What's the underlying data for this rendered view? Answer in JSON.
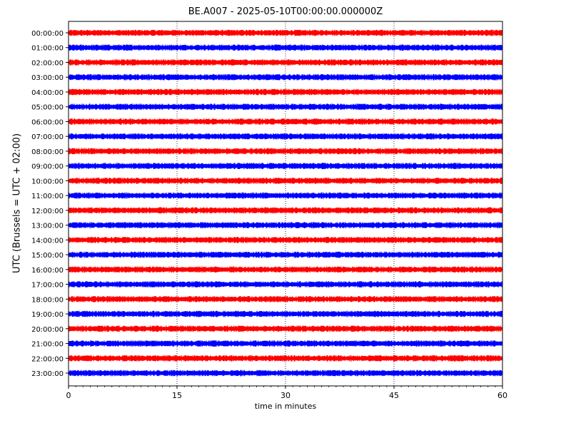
{
  "chart_data": {
    "type": "line",
    "title": "BE.A007 - 2025-05-10T00:00:00.000000Z",
    "xlabel": "time in minutes",
    "ylabel": "UTC (Brussels = UTC + 02:00)",
    "xlim": [
      0,
      60
    ],
    "x_ticks": [
      "0",
      "15",
      "30",
      "45",
      "60"
    ],
    "x_tick_values": [
      0,
      15,
      30,
      45,
      60
    ],
    "grid": "vertical dotted",
    "series_colors": [
      "#ff0000",
      "#0000ff"
    ],
    "series": [
      {
        "label": "00:00:00",
        "color": "#ff0000"
      },
      {
        "label": "01:00:00",
        "color": "#0000ff"
      },
      {
        "label": "02:00:00",
        "color": "#ff0000"
      },
      {
        "label": "03:00:00",
        "color": "#0000ff"
      },
      {
        "label": "04:00:00",
        "color": "#ff0000"
      },
      {
        "label": "05:00:00",
        "color": "#0000ff"
      },
      {
        "label": "06:00:00",
        "color": "#ff0000"
      },
      {
        "label": "07:00:00",
        "color": "#0000ff"
      },
      {
        "label": "08:00:00",
        "color": "#ff0000"
      },
      {
        "label": "09:00:00",
        "color": "#0000ff"
      },
      {
        "label": "10:00:00",
        "color": "#ff0000"
      },
      {
        "label": "11:00:00",
        "color": "#0000ff"
      },
      {
        "label": "12:00:00",
        "color": "#ff0000"
      },
      {
        "label": "13:00:00",
        "color": "#0000ff"
      },
      {
        "label": "14:00:00",
        "color": "#ff0000"
      },
      {
        "label": "15:00:00",
        "color": "#0000ff"
      },
      {
        "label": "16:00:00",
        "color": "#ff0000"
      },
      {
        "label": "17:00:00",
        "color": "#0000ff"
      },
      {
        "label": "18:00:00",
        "color": "#ff0000"
      },
      {
        "label": "19:00:00",
        "color": "#0000ff"
      },
      {
        "label": "20:00:00",
        "color": "#ff0000"
      },
      {
        "label": "21:00:00",
        "color": "#0000ff"
      },
      {
        "label": "22:00:00",
        "color": "#ff0000"
      },
      {
        "label": "23:00:00",
        "color": "#0000ff"
      }
    ]
  }
}
